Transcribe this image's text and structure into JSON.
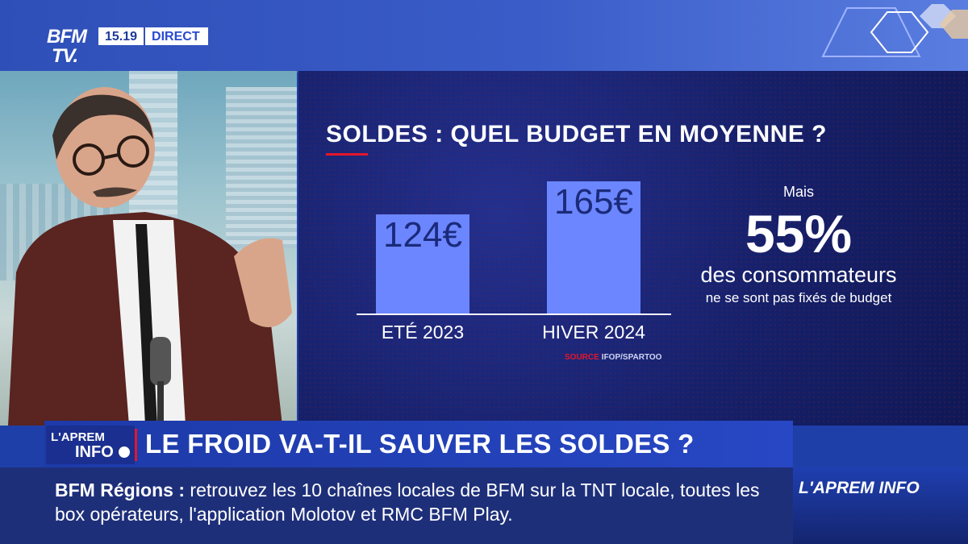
{
  "channel": {
    "logo_line1": "BFM",
    "logo_line2": "TV.",
    "time": "15.19",
    "live": "DIRECT"
  },
  "chart_data": {
    "type": "bar",
    "title": "SOLDES : QUEL BUDGET EN MOYENNE ?",
    "categories": [
      "ETÉ 2023",
      "HIVER 2024"
    ],
    "values": [
      124,
      165
    ],
    "value_labels": [
      "124€",
      "165€"
    ],
    "unit": "€",
    "ylim": [
      0,
      180
    ],
    "grid": false,
    "source_label": "SOURCE",
    "source_text": "IFOP/SPARTOO",
    "colors": {
      "bar": "#6b86ff",
      "bar_top": "#5a78f5",
      "baseline": "#ffffff",
      "value_text": "#1b2a7a"
    }
  },
  "stat": {
    "pre": "Mais",
    "value": "55%",
    "line1": "des consommateurs",
    "line2": "ne se sont pas fixés de budget"
  },
  "lower_third": {
    "logo_top": "L'APREM",
    "logo_bottom": "INFO",
    "headline": "LE FROID VA-T-IL SAUVER LES SOLDES ?"
  },
  "ticker": {
    "label": "BFM Régions",
    "separator": " : ",
    "text": "retrouvez les 10 chaînes locales de BFM sur la TNT locale, toutes les box opérateurs, l'application Molotov et RMC BFM Play.",
    "brand": "L'APREM INFO"
  },
  "colors": {
    "accent_red": "#e4162b",
    "brand_blue": "#2a4bd1"
  }
}
